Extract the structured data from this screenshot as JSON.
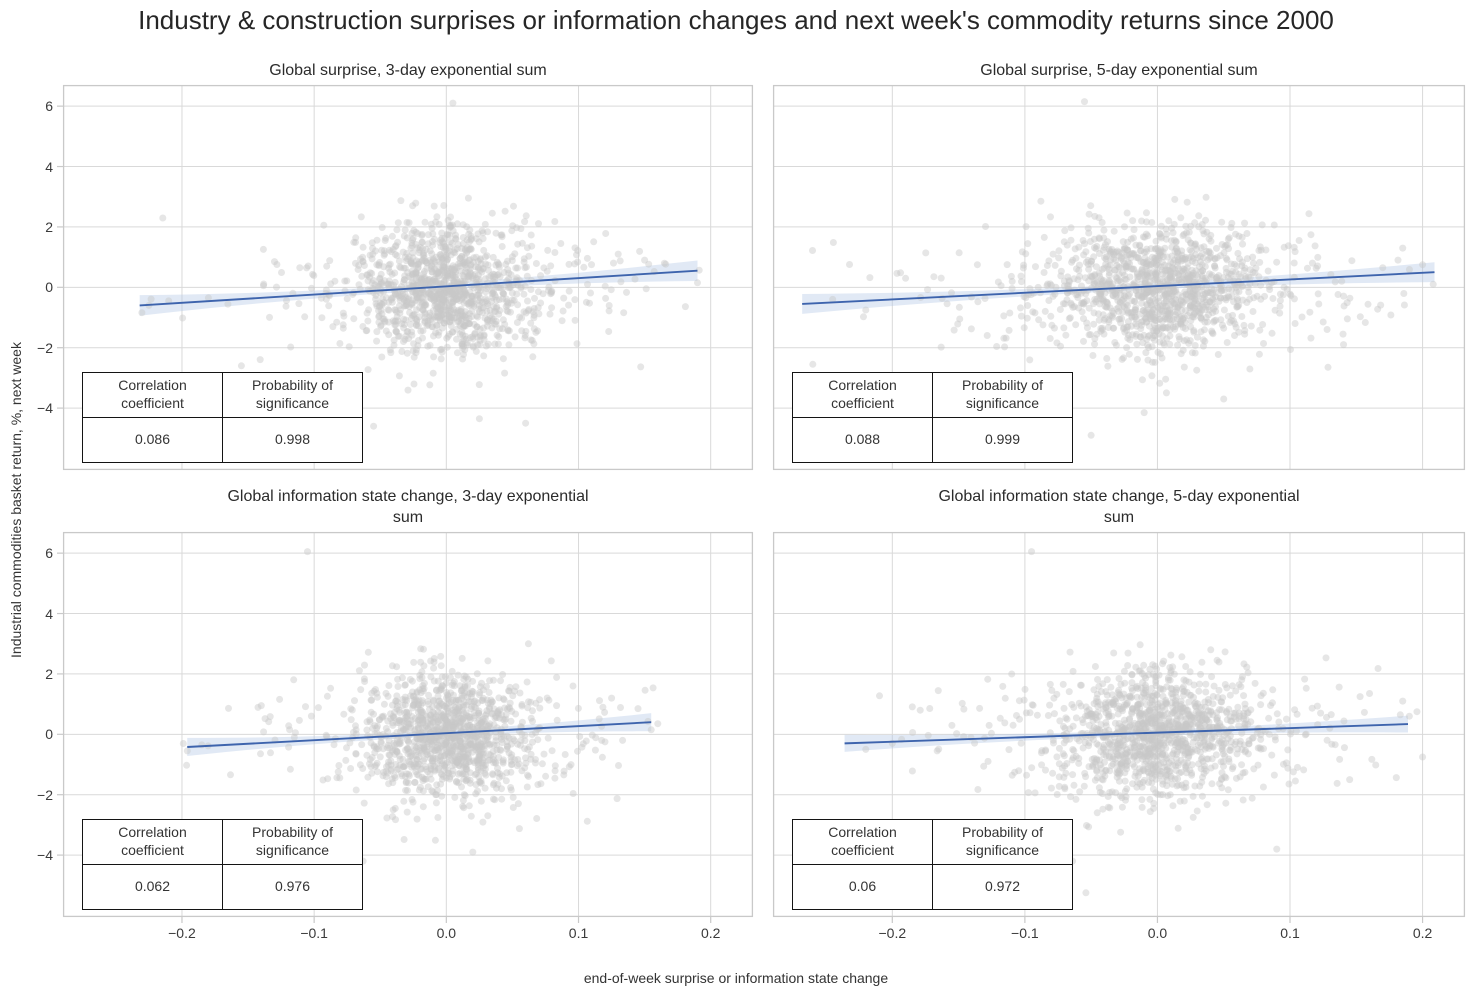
{
  "header": {
    "title": "Industry & construction surprises or information changes and next week's commodity returns since 2000"
  },
  "chart_data": {
    "type": "scatter",
    "layout": "2x2-grid-shared-axes",
    "grid": true,
    "xlabel": "end-of-week surprise or information state change",
    "ylabel": "Industrial commodities basket return, %, next week",
    "x_range": [
      -0.29,
      0.232
    ],
    "y_range": [
      -6.05,
      6.7
    ],
    "x_tick_values": [
      -0.2,
      -0.1,
      0.0,
      0.1,
      0.2
    ],
    "x_tick_labels": [
      "−0.2",
      "−0.1",
      "0.0",
      "0.1",
      "0.2"
    ],
    "y_tick_values": [
      6,
      4,
      2,
      0,
      -2,
      -4
    ],
    "y_tick_labels": [
      "6",
      "4",
      "2",
      "0",
      "−2",
      "−4"
    ],
    "colors": {
      "scatter": "#c7c7c7",
      "line": "#3e64ad",
      "band": "#b3c7e6",
      "grid": "#d9d9d9",
      "spine": "#c9c9c9",
      "text": "#262626"
    },
    "table_headers": [
      "Correlation coefficient",
      "Probability of significance"
    ],
    "panels": [
      {
        "title": "Global surprise, 3-day exponential sum",
        "stats": {
          "correlation_coefficient": "0.086",
          "probability_of_significance": "0.998"
        },
        "regression_line": {
          "x0": -0.232,
          "y0": -0.6,
          "x1": 0.19,
          "y1": 0.55
        },
        "band_halfwidth": {
          "center": 0.1,
          "ends": 0.34
        },
        "scatter_summary": {
          "n_points": 1250,
          "seed": 7,
          "x_core_sigma": 0.03,
          "y_sigma": 1.05,
          "x_min": -0.235,
          "x_max": 0.195
        },
        "outlier_points": [
          [
            0.005,
            6.1
          ],
          [
            -0.07,
            -5.45
          ],
          [
            -0.055,
            -4.6
          ],
          [
            0.025,
            -4.35
          ],
          [
            0.06,
            -4.5
          ],
          [
            -0.155,
            -2.6
          ],
          [
            -0.18,
            -0.35
          ],
          [
            -0.21,
            -0.45
          ],
          [
            -0.225,
            -0.6
          ],
          [
            0.15,
            0.9
          ],
          [
            0.165,
            0.8
          ],
          [
            0.19,
            0.15
          ],
          [
            0.13,
            1.1
          ],
          [
            -0.13,
            0.85
          ]
        ],
        "show_y_ticks": true,
        "show_x_ticks": false
      },
      {
        "title": "Global surprise, 5-day exponential sum",
        "stats": {
          "correlation_coefficient": "0.088",
          "probability_of_significance": "0.999"
        },
        "regression_line": {
          "x0": -0.268,
          "y0": -0.55,
          "x1": 0.209,
          "y1": 0.5
        },
        "band_halfwidth": {
          "center": 0.1,
          "ends": 0.33
        },
        "scatter_summary": {
          "n_points": 1300,
          "seed": 8,
          "x_core_sigma": 0.036,
          "y_sigma": 1.05,
          "x_min": -0.268,
          "x_max": 0.212
        },
        "outlier_points": [
          [
            -0.055,
            6.15
          ],
          [
            -0.05,
            -4.9
          ],
          [
            -0.01,
            -4.15
          ],
          [
            0.05,
            -3.7
          ],
          [
            -0.26,
            -2.55
          ],
          [
            -0.245,
            -0.4
          ],
          [
            -0.22,
            -0.75
          ],
          [
            0.2,
            0.75
          ],
          [
            0.208,
            0.1
          ],
          [
            0.185,
            1.3
          ],
          [
            0.17,
            0.65
          ],
          [
            -0.19,
            0.3
          ],
          [
            0.14,
            -1.55
          ]
        ],
        "show_y_ticks": false,
        "show_x_ticks": false
      },
      {
        "title": "Global information state change, 3-day exponential sum",
        "stats": {
          "correlation_coefficient": "0.062",
          "probability_of_significance": "0.976"
        },
        "regression_line": {
          "x0": -0.196,
          "y0": -0.42,
          "x1": 0.155,
          "y1": 0.4
        },
        "band_halfwidth": {
          "center": 0.09,
          "ends": 0.3
        },
        "scatter_summary": {
          "n_points": 1250,
          "seed": 9,
          "x_core_sigma": 0.028,
          "y_sigma": 1.05,
          "x_min": -0.2,
          "x_max": 0.165
        },
        "outlier_points": [
          [
            -0.105,
            6.05
          ],
          [
            -0.085,
            -5.1
          ],
          [
            -0.063,
            -4.2
          ],
          [
            0.02,
            -3.9
          ],
          [
            -0.16,
            -3.0
          ],
          [
            -0.196,
            -0.55
          ],
          [
            -0.185,
            -0.35
          ],
          [
            0.155,
            0.15
          ],
          [
            0.145,
            0.85
          ],
          [
            0.16,
            0.35
          ],
          [
            0.125,
            1.2
          ],
          [
            -0.14,
            0.95
          ]
        ],
        "show_y_ticks": true,
        "show_x_ticks": true
      },
      {
        "title": "Global information state change, 5-day exponential sum",
        "stats": {
          "correlation_coefficient": "0.06",
          "probability_of_significance": "0.972"
        },
        "regression_line": {
          "x0": -0.236,
          "y0": -0.3,
          "x1": 0.189,
          "y1": 0.34
        },
        "band_halfwidth": {
          "center": 0.09,
          "ends": 0.28
        },
        "scatter_summary": {
          "n_points": 1300,
          "seed": 10,
          "x_core_sigma": 0.033,
          "y_sigma": 1.05,
          "x_min": -0.24,
          "x_max": 0.2
        },
        "outlier_points": [
          [
            -0.095,
            6.05
          ],
          [
            -0.054,
            -5.25
          ],
          [
            -0.064,
            -4.2
          ],
          [
            0.09,
            -3.8
          ],
          [
            -0.235,
            -2.95
          ],
          [
            -0.22,
            -0.5
          ],
          [
            -0.2,
            -0.3
          ],
          [
            0.19,
            0.6
          ],
          [
            0.2,
            -0.75
          ],
          [
            0.185,
            1.1
          ],
          [
            0.16,
            1.35
          ],
          [
            0.145,
            -1.5
          ]
        ],
        "show_y_ticks": false,
        "show_x_ticks": true
      }
    ]
  }
}
